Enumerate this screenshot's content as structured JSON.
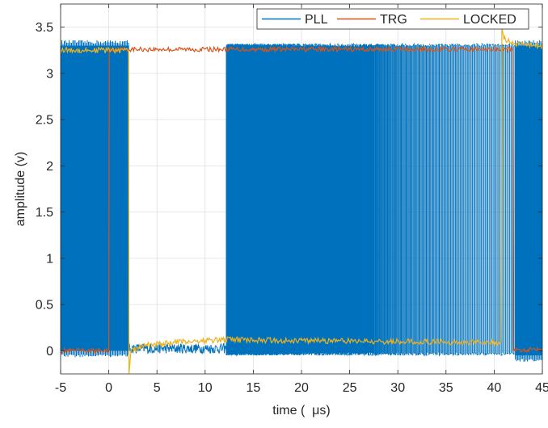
{
  "chart_data": {
    "type": "line",
    "title": "",
    "xlabel": "time (  μs)",
    "ylabel": "amplitude (v)",
    "xlim": [
      -5,
      45
    ],
    "ylim": [
      -0.25,
      3.75
    ],
    "grid": true,
    "legend_position": "top-right",
    "xticks": [
      -5,
      0,
      5,
      10,
      15,
      20,
      25,
      30,
      35,
      40,
      45
    ],
    "xtick_labels": [
      "-5",
      "0",
      "5",
      "10",
      "15",
      "20",
      "25",
      "30",
      "35",
      "40",
      "45"
    ],
    "yticks": [
      0,
      0.5,
      1,
      1.5,
      2,
      2.5,
      3,
      3.5
    ],
    "ytick_labels": [
      "0",
      "0.5",
      "1",
      "1.5",
      "2",
      "2.5",
      "3",
      "3.5"
    ],
    "colors": {
      "PLL": "#0072BD",
      "TRG": "#D95319",
      "LOCKED": "#EDB120"
    },
    "series": [
      {
        "name": "PLL",
        "segments": [
          {
            "x_start": -5,
            "x_end": 2.1,
            "low": 0.0,
            "high": 3.3,
            "behavior": "dense oscillation"
          },
          {
            "x_start": 2.1,
            "x_end": 12.2,
            "low": -0.03,
            "high": 0.08,
            "behavior": "near zero"
          },
          {
            "x_start": 12.2,
            "x_end": 42.2,
            "low": -0.05,
            "high": 3.32,
            "behavior": "oscillation with decreasing frequency"
          },
          {
            "x_start": 42.2,
            "x_end": 45,
            "low": -0.05,
            "high": 3.3,
            "behavior": "dense oscillation"
          }
        ]
      },
      {
        "name": "TRG",
        "points": [
          [
            -5,
            0.0
          ],
          [
            0.0,
            0.0
          ],
          [
            0.05,
            3.26
          ],
          [
            41.9,
            3.26
          ],
          [
            42.0,
            0.0
          ],
          [
            45,
            0.03
          ]
        ]
      },
      {
        "name": "LOCKED",
        "points": [
          [
            -5,
            3.25
          ],
          [
            2.05,
            3.25
          ],
          [
            2.1,
            -0.25
          ],
          [
            2.3,
            0.0
          ],
          [
            4,
            0.06
          ],
          [
            8,
            0.1
          ],
          [
            12,
            0.12
          ],
          [
            20,
            0.11
          ],
          [
            30,
            0.1
          ],
          [
            40.7,
            0.09
          ],
          [
            40.8,
            3.5
          ],
          [
            41.0,
            3.38
          ],
          [
            42,
            3.32
          ],
          [
            45,
            3.3
          ]
        ]
      }
    ]
  }
}
